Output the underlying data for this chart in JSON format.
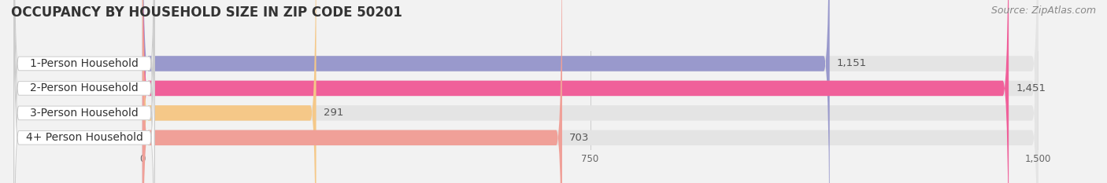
{
  "title": "OCCUPANCY BY HOUSEHOLD SIZE IN ZIP CODE 50201",
  "source": "Source: ZipAtlas.com",
  "categories": [
    "1-Person Household",
    "2-Person Household",
    "3-Person Household",
    "4+ Person Household"
  ],
  "values": [
    1151,
    1451,
    291,
    703
  ],
  "bar_colors": [
    "#9999cc",
    "#f0609a",
    "#f5c888",
    "#f0a098"
  ],
  "background_color": "#f2f2f2",
  "bar_bg_color": "#e4e4e4",
  "xlim_max": 1500,
  "xticks": [
    0,
    750,
    1500
  ],
  "title_fontsize": 12,
  "label_fontsize": 10,
  "value_fontsize": 9.5,
  "source_fontsize": 9
}
